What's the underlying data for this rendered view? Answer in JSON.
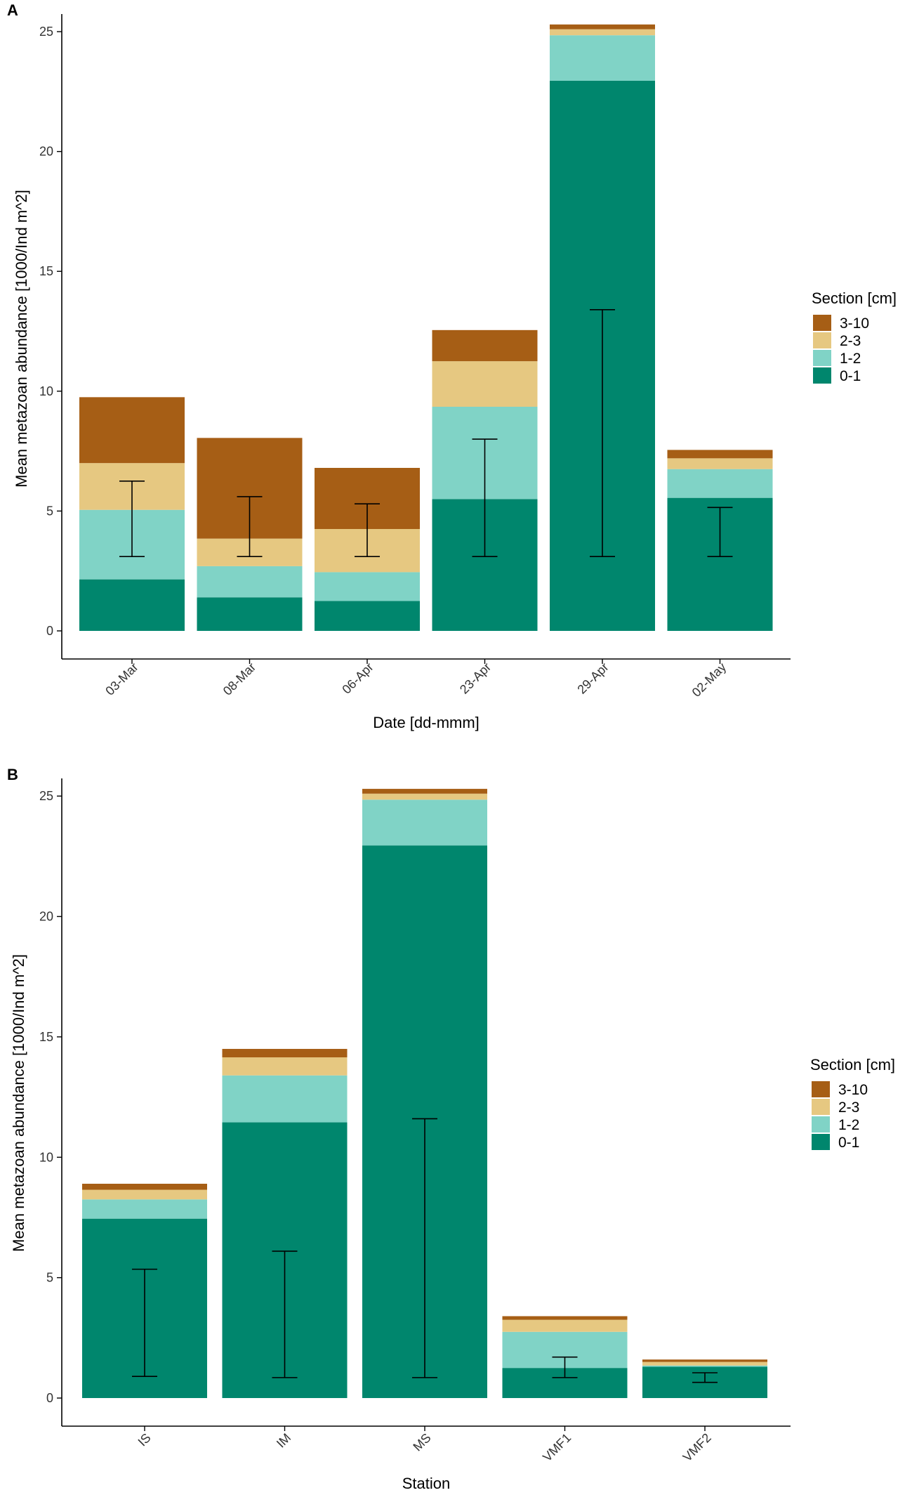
{
  "colors": {
    "3-10": "#a65e15",
    "2-3": "#e6c881",
    "1-2": "#80d3c6",
    "0-1": "#00866d",
    "axis": "#000000",
    "text": "#222222"
  },
  "chart_data": [
    {
      "panel": "A",
      "type": "bar",
      "stacked": true,
      "categories": [
        "03-Mar",
        "08-Mar",
        "06-Apr",
        "23-Apr",
        "29-Apr",
        "02-May"
      ],
      "series": [
        {
          "name": "0-1",
          "values": [
            2.15,
            1.4,
            1.25,
            5.5,
            22.95,
            5.55
          ]
        },
        {
          "name": "1-2",
          "values": [
            2.9,
            1.3,
            1.2,
            3.85,
            1.9,
            1.2
          ]
        },
        {
          "name": "2-3",
          "values": [
            1.95,
            1.15,
            1.8,
            1.9,
            0.25,
            0.45
          ]
        },
        {
          "name": "3-10",
          "values": [
            2.75,
            4.2,
            2.55,
            1.3,
            0.2,
            0.35
          ]
        }
      ],
      "error_bars": [
        {
          "low": 3.1,
          "high": 6.25
        },
        {
          "low": 3.1,
          "high": 5.6
        },
        {
          "low": 3.1,
          "high": 5.3
        },
        {
          "low": 3.1,
          "high": 8.0
        },
        {
          "low": 3.1,
          "high": 13.4
        },
        {
          "low": 3.1,
          "high": 5.15
        }
      ],
      "title": "",
      "xlabel": "Date [dd-mmm]",
      "ylabel": "Mean metazoan abundance [1000/Ind m^2]",
      "ylim": [
        0,
        26.5
      ],
      "yticks": [
        0,
        5,
        10,
        15,
        20,
        25
      ],
      "grid": false,
      "legend_title": "Section [cm]",
      "legend_position": "right",
      "legend_entries": [
        "3-10",
        "2-3",
        "1-2",
        "0-1"
      ]
    },
    {
      "panel": "B",
      "type": "bar",
      "stacked": true,
      "categories": [
        "IS",
        "IM",
        "MS",
        "VMF1",
        "VMF2"
      ],
      "series": [
        {
          "name": "0-1",
          "values": [
            7.45,
            11.45,
            22.95,
            1.25,
            1.3
          ]
        },
        {
          "name": "1-2",
          "values": [
            0.8,
            1.95,
            1.9,
            1.5,
            0.05
          ]
        },
        {
          "name": "2-3",
          "values": [
            0.4,
            0.75,
            0.25,
            0.5,
            0.15
          ]
        },
        {
          "name": "3-10",
          "values": [
            0.25,
            0.35,
            0.2,
            0.15,
            0.1
          ]
        }
      ],
      "error_bars": [
        {
          "low": 0.9,
          "high": 5.35
        },
        {
          "low": 0.85,
          "high": 6.1
        },
        {
          "low": 0.85,
          "high": 11.6
        },
        {
          "low": 0.85,
          "high": 1.7
        },
        {
          "low": 0.65,
          "high": 1.05
        }
      ],
      "title": "",
      "xlabel": "Station",
      "ylabel": "Mean metazoan abundance [1000/Ind m^2]",
      "ylim": [
        0,
        26.5
      ],
      "yticks": [
        0,
        5,
        10,
        15,
        20,
        25
      ],
      "grid": false,
      "legend_title": "Section [cm]",
      "legend_position": "right",
      "legend_entries": [
        "3-10",
        "2-3",
        "1-2",
        "0-1"
      ]
    }
  ]
}
